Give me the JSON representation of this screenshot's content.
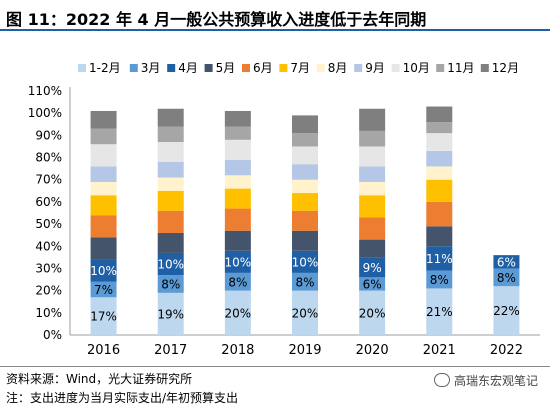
{
  "title": "图 11：2022 年 4 月一般公共预算收入进度低于去年同期",
  "source_note": "资料来源：Wind，光大证券研究所",
  "footnote": "注：支出进度为当月实际支出/年初预算支出",
  "watermark": "高瑞东宏观笔记",
  "chart_data": {
    "type": "bar",
    "stacked": true,
    "categories": [
      "2016",
      "2017",
      "2018",
      "2019",
      "2020",
      "2021",
      "2022"
    ],
    "ylim": [
      0,
      110
    ],
    "yticks": [
      "0%",
      "10%",
      "20%",
      "30%",
      "40%",
      "50%",
      "60%",
      "70%",
      "80%",
      "90%",
      "100%",
      "110%"
    ],
    "legend_position": "top",
    "series": [
      {
        "name": "1-2月",
        "color": "#bdd7ee",
        "values": [
          17,
          19,
          20,
          20,
          20,
          21,
          22
        ],
        "labels": [
          "17%",
          "19%",
          "20%",
          "20%",
          "20%",
          "21%",
          "22%"
        ]
      },
      {
        "name": "3月",
        "color": "#5b9bd5",
        "values": [
          7,
          8,
          8,
          8,
          6,
          8,
          8
        ],
        "labels": [
          "7%",
          "8%",
          "8%",
          "8%",
          "6%",
          "8%",
          "8%"
        ]
      },
      {
        "name": "4月",
        "color": "#1f5fa6",
        "values": [
          10,
          10,
          10,
          10,
          9,
          11,
          6
        ],
        "labels": [
          "10%",
          "10%",
          "10%",
          "10%",
          "9%",
          "11%",
          "6%"
        ]
      },
      {
        "name": "5月",
        "color": "#44546a",
        "values": [
          10,
          9,
          9,
          9,
          8,
          9,
          null
        ]
      },
      {
        "name": "6月",
        "color": "#ed7d31",
        "values": [
          10,
          10,
          10,
          9,
          10,
          11,
          null
        ]
      },
      {
        "name": "7月",
        "color": "#ffc000",
        "values": [
          9,
          9,
          9,
          8,
          10,
          10,
          null
        ]
      },
      {
        "name": "8月",
        "color": "#fff2cc",
        "values": [
          6,
          6,
          6,
          6,
          6,
          6,
          null
        ]
      },
      {
        "name": "9月",
        "color": "#b4c7e7",
        "values": [
          7,
          7,
          7,
          7,
          7,
          7,
          null
        ]
      },
      {
        "name": "10月",
        "color": "#e7e6e6",
        "values": [
          10,
          9,
          9,
          8,
          9,
          8,
          null
        ]
      },
      {
        "name": "11月",
        "color": "#a6a6a6",
        "values": [
          7,
          7,
          6,
          6,
          7,
          5,
          null
        ]
      },
      {
        "name": "12月",
        "color": "#7f7f7f",
        "values": [
          8,
          8,
          7,
          8,
          10,
          7,
          null
        ]
      }
    ]
  }
}
